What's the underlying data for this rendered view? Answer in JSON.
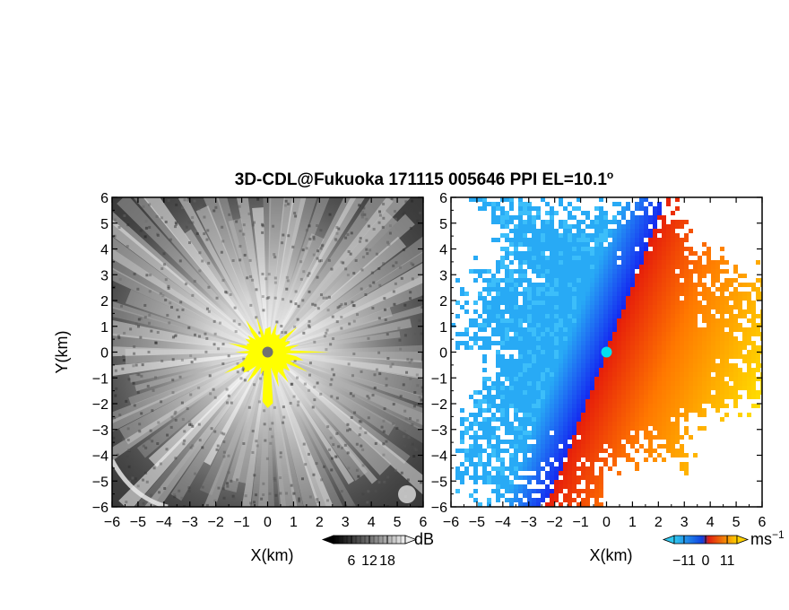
{
  "title": "3D-CDL@Fukuoka 171115 005646 PPI EL=10.1",
  "title_degree": "o",
  "chart_data": [
    {
      "type": "heatmap",
      "panel": "left",
      "quantity": "signal intensity",
      "xlabel": "X(km)",
      "ylabel": "Y(km)",
      "xlim": [
        -6,
        6
      ],
      "ylim": [
        -6,
        6
      ],
      "xticks": [
        -6,
        -5,
        -4,
        -3,
        -2,
        -1,
        0,
        1,
        2,
        3,
        4,
        5,
        6
      ],
      "yticks": [
        -6,
        -5,
        -4,
        -3,
        -2,
        -1,
        0,
        1,
        2,
        3,
        4,
        5,
        6
      ],
      "colormap": "grayscale",
      "colorbar": {
        "unit": "dB",
        "ticks": [
          6,
          12,
          18
        ],
        "range": [
          0,
          24
        ]
      },
      "saturated_color": "#ffff00",
      "center_marker_color": "#707070"
    },
    {
      "type": "heatmap",
      "panel": "right",
      "quantity": "doppler velocity",
      "xlabel": "X(km)",
      "ylabel": "",
      "xlim": [
        -6,
        6
      ],
      "ylim": [
        -6,
        6
      ],
      "xticks": [
        -6,
        -5,
        -4,
        -3,
        -2,
        -1,
        0,
        1,
        2,
        3,
        4,
        5,
        6
      ],
      "yticks": [
        -6,
        -5,
        -4,
        -3,
        -2,
        -1,
        0,
        1,
        2,
        3,
        4,
        5,
        6
      ],
      "colormap": "blue-cyan-red-yellow",
      "colorbar": {
        "unit_base": "ms",
        "unit_exp": "−1",
        "ticks": [
          "−11",
          "0",
          "11"
        ],
        "range": [
          -16,
          16
        ]
      },
      "center_marker_color": "#00e0f0"
    }
  ]
}
